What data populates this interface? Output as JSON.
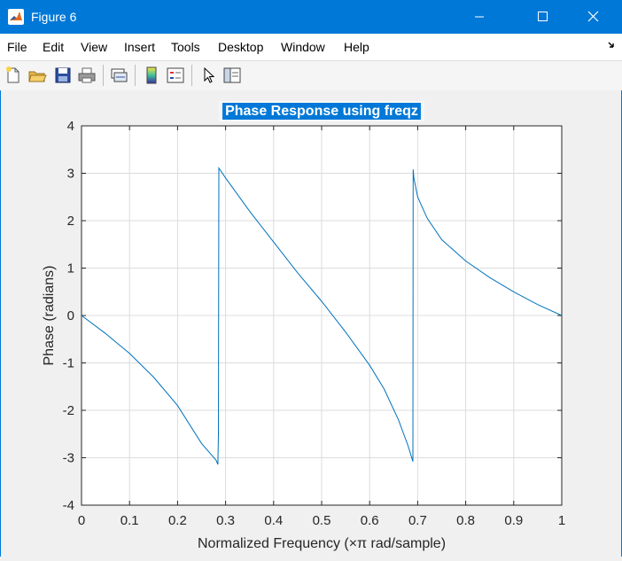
{
  "window": {
    "title": "Figure 6",
    "accent": "#0078d7"
  },
  "menu": {
    "items": [
      "File",
      "Edit",
      "View",
      "Insert",
      "Tools",
      "Desktop",
      "Window",
      "Help"
    ],
    "overflow_icon": "dock-arrow-icon"
  },
  "toolbar": {
    "buttons": [
      "new-figure-icon",
      "open-file-icon",
      "save-icon",
      "print-icon",
      "link-plot-icon",
      "colorbar-icon",
      "legend-icon",
      "select-pointer-icon",
      "property-editor-icon"
    ]
  },
  "chart_data": {
    "type": "line",
    "title": "Phase Response using freqz",
    "xlabel": "Normalized Frequency (×π rad/sample)",
    "ylabel": "Phase (radians)",
    "xlim": [
      0,
      1
    ],
    "ylim": [
      -4,
      4
    ],
    "xticks": [
      "0",
      "0.1",
      "0.2",
      "0.3",
      "0.4",
      "0.5",
      "0.6",
      "0.7",
      "0.8",
      "0.9",
      "1"
    ],
    "yticks": [
      "4",
      "3",
      "2",
      "1",
      "0",
      "-1",
      "-2",
      "-3",
      "-4"
    ],
    "grid": true,
    "line_color": "#0072bd",
    "series": [
      {
        "x": [
          0,
          0.05,
          0.1,
          0.15,
          0.2,
          0.25,
          0.28,
          0.284,
          0.285,
          0.286,
          0.3,
          0.35,
          0.4,
          0.45,
          0.5,
          0.55,
          0.6,
          0.63,
          0.66,
          0.68,
          0.69,
          0.6905,
          0.692,
          0.7,
          0.72,
          0.75,
          0.8,
          0.85,
          0.9,
          0.95,
          1.0
        ],
        "y": [
          0,
          -0.38,
          -0.8,
          -1.3,
          -1.9,
          -2.7,
          -3.05,
          -3.14,
          -2.5,
          3.11,
          2.9,
          2.2,
          1.55,
          0.9,
          0.3,
          -0.35,
          -1.05,
          -1.55,
          -2.2,
          -2.75,
          -3.08,
          3.08,
          2.9,
          2.5,
          2.05,
          1.6,
          1.15,
          0.8,
          0.5,
          0.23,
          0.0
        ]
      }
    ]
  }
}
